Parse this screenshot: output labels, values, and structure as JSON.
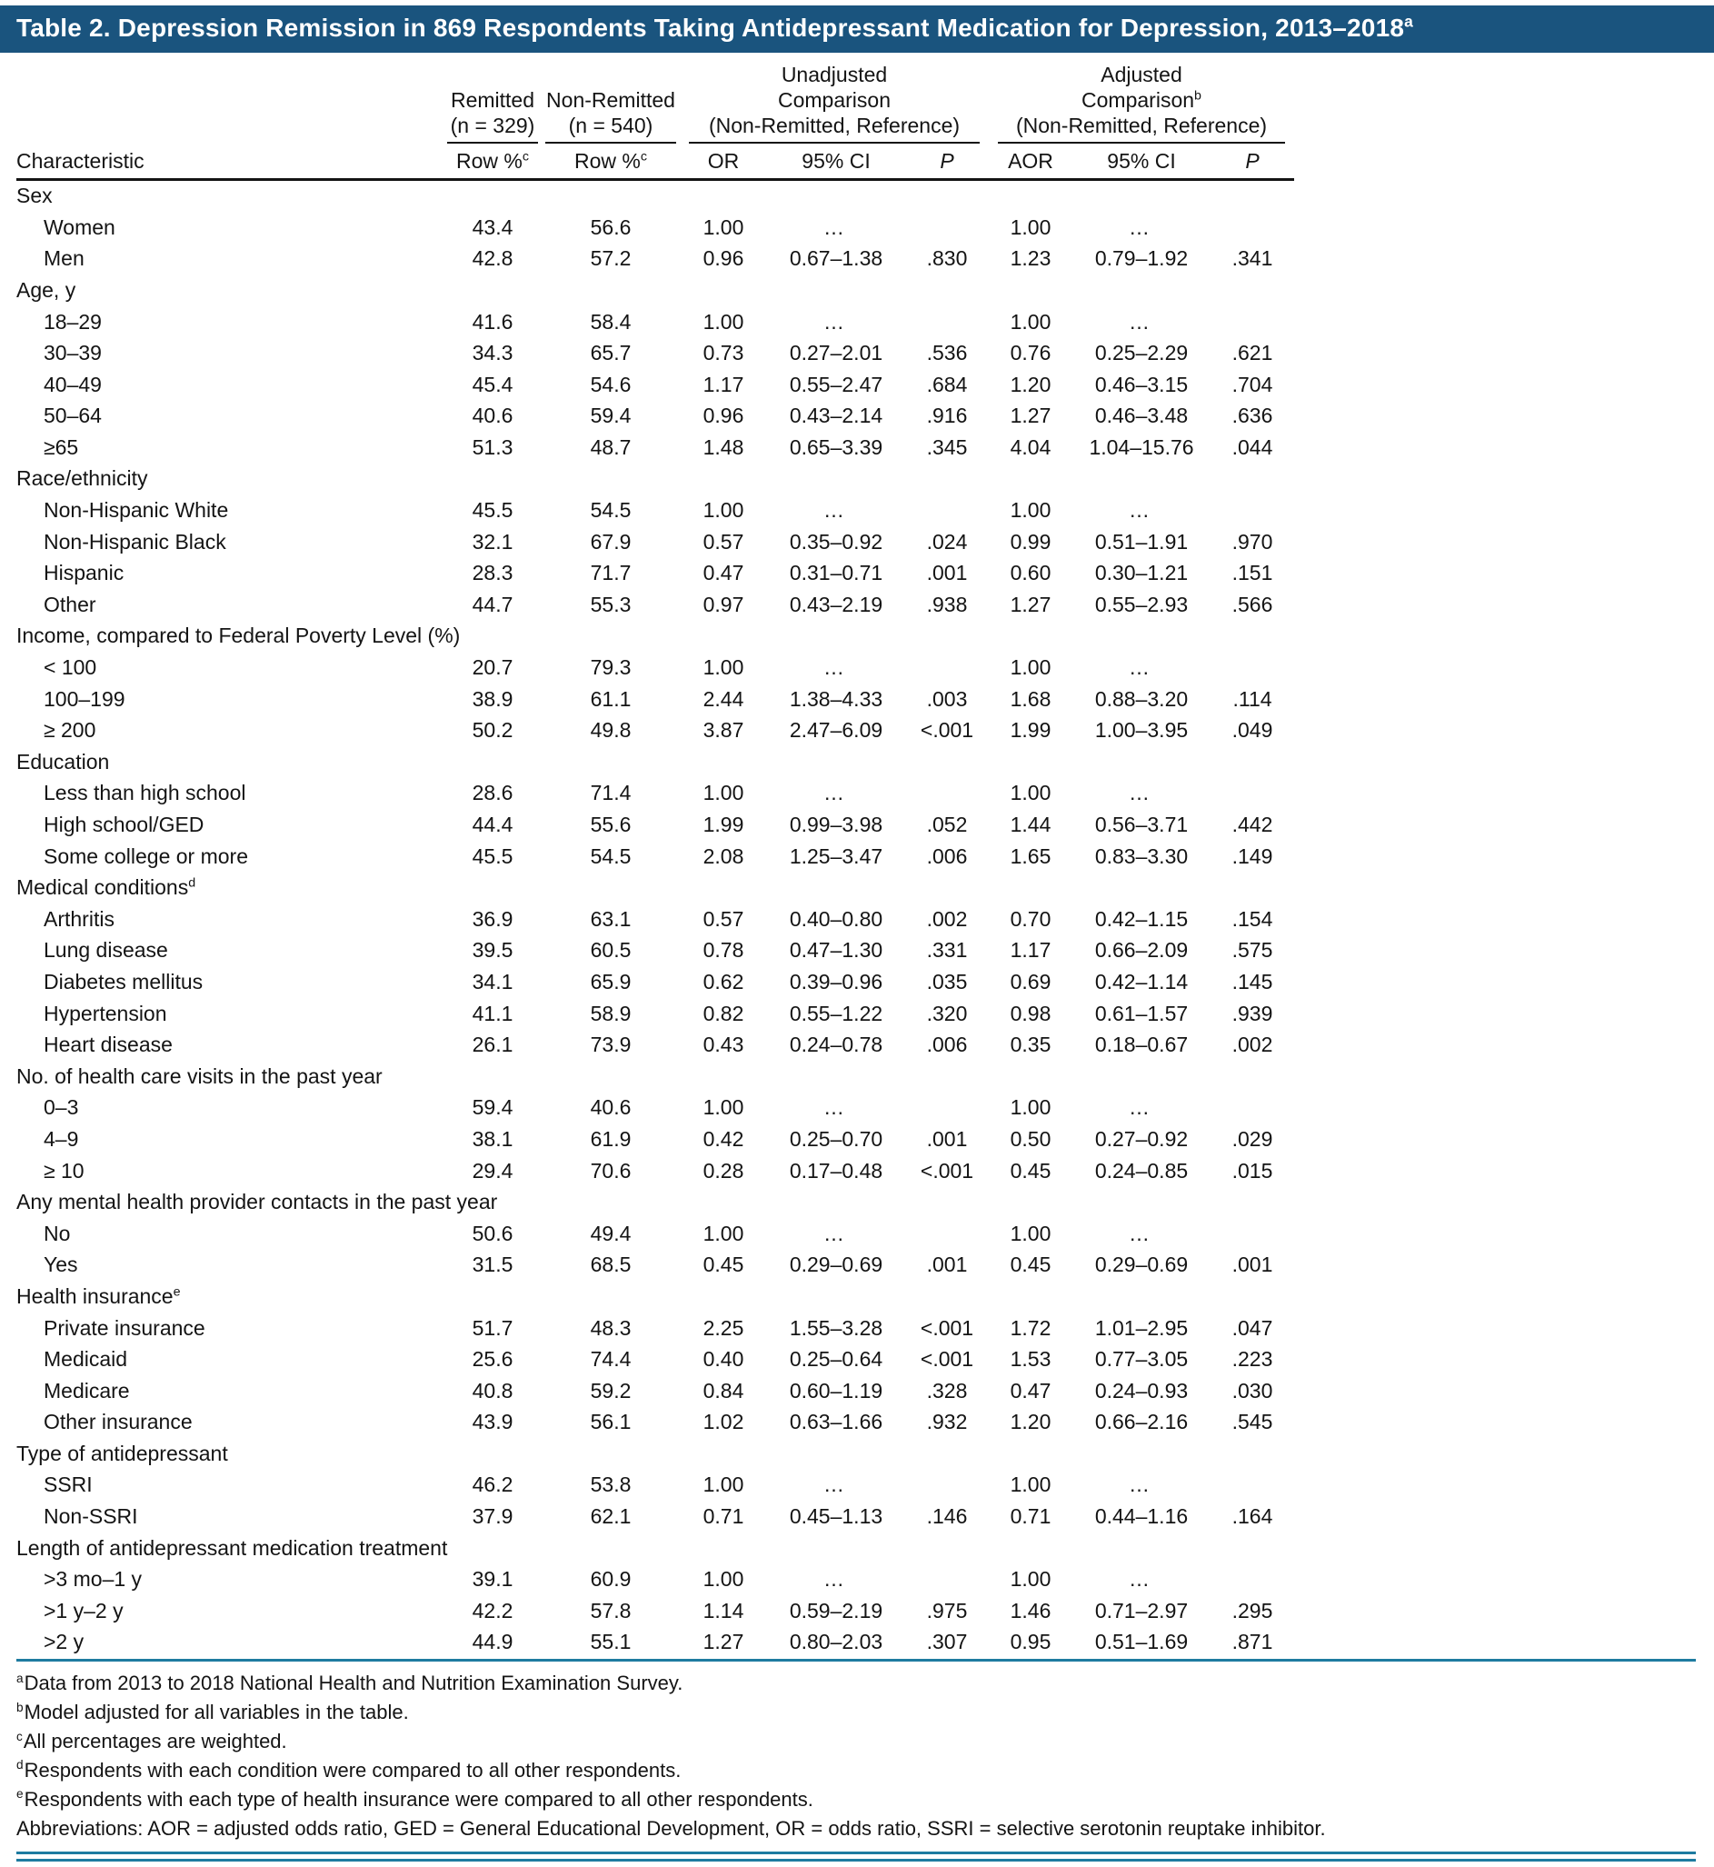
{
  "colors": {
    "header_bg": "#1A547E",
    "rule_teal": "#1E7BA0",
    "rule_black": "#141414"
  },
  "title": {
    "text": "Table 2. Depression Remission in 869 Respondents Taking Antidepressant Medication for Depression, 2013–2018",
    "sup": "a"
  },
  "header": {
    "characteristic": "Characteristic",
    "remitted": {
      "line1": "Remitted",
      "line2": "(n = 329)",
      "sub": "Row %",
      "sub_sup": "c"
    },
    "non_remitted": {
      "line1": "Non-Remitted",
      "line2": "(n = 540)",
      "sub": "Row %",
      "sub_sup": "c"
    },
    "unadjusted": {
      "line1": "Unadjusted",
      "line2": "Comparison",
      "line3": "(Non-Remitted, Reference)",
      "sub_or": "OR",
      "sub_ci": "95% CI",
      "sub_p": "P"
    },
    "adjusted": {
      "line1": "Adjusted",
      "line2": "Comparison",
      "sup": "b",
      "line3": "(Non-Remitted, Reference)",
      "sub_or": "AOR",
      "sub_ci": "95% CI",
      "sub_p": "P"
    }
  },
  "table": {
    "sections": [
      {
        "label": "Sex",
        "rows": [
          {
            "label": "Women",
            "remitted": "43.4",
            "non_remitted": "56.6",
            "or": "1.00",
            "or_ci": "…",
            "or_p": "",
            "aor": "1.00",
            "aor_ci": "…",
            "aor_p": ""
          },
          {
            "label": "Men",
            "remitted": "42.8",
            "non_remitted": "57.2",
            "or": "0.96",
            "or_ci": "0.67–1.38",
            "or_p": ".830",
            "aor": "1.23",
            "aor_ci": "0.79–1.92",
            "aor_p": ".341"
          }
        ]
      },
      {
        "label": "Age, y",
        "rows": [
          {
            "label": "18–29",
            "remitted": "41.6",
            "non_remitted": "58.4",
            "or": "1.00",
            "or_ci": "…",
            "or_p": "",
            "aor": "1.00",
            "aor_ci": "…",
            "aor_p": ""
          },
          {
            "label": "30–39",
            "remitted": "34.3",
            "non_remitted": "65.7",
            "or": "0.73",
            "or_ci": "0.27–2.01",
            "or_p": ".536",
            "aor": "0.76",
            "aor_ci": "0.25–2.29",
            "aor_p": ".621"
          },
          {
            "label": "40–49",
            "remitted": "45.4",
            "non_remitted": "54.6",
            "or": "1.17",
            "or_ci": "0.55–2.47",
            "or_p": ".684",
            "aor": "1.20",
            "aor_ci": "0.46–3.15",
            "aor_p": ".704"
          },
          {
            "label": "50–64",
            "remitted": "40.6",
            "non_remitted": "59.4",
            "or": "0.96",
            "or_ci": "0.43–2.14",
            "or_p": ".916",
            "aor": "1.27",
            "aor_ci": "0.46–3.48",
            "aor_p": ".636"
          },
          {
            "label": "≥65",
            "remitted": "51.3",
            "non_remitted": "48.7",
            "or": "1.48",
            "or_ci": "0.65–3.39",
            "or_p": ".345",
            "aor": "4.04",
            "aor_ci": "1.04–15.76",
            "aor_p": ".044"
          }
        ]
      },
      {
        "label": "Race/ethnicity",
        "rows": [
          {
            "label": "Non-Hispanic White",
            "remitted": "45.5",
            "non_remitted": "54.5",
            "or": "1.00",
            "or_ci": "…",
            "or_p": "",
            "aor": "1.00",
            "aor_ci": "…",
            "aor_p": ""
          },
          {
            "label": "Non-Hispanic Black",
            "remitted": "32.1",
            "non_remitted": "67.9",
            "or": "0.57",
            "or_ci": "0.35–0.92",
            "or_p": ".024",
            "aor": "0.99",
            "aor_ci": "0.51–1.91",
            "aor_p": ".970"
          },
          {
            "label": "Hispanic",
            "remitted": "28.3",
            "non_remitted": "71.7",
            "or": "0.47",
            "or_ci": "0.31–0.71",
            "or_p": ".001",
            "aor": "0.60",
            "aor_ci": "0.30–1.21",
            "aor_p": ".151"
          },
          {
            "label": "Other",
            "remitted": "44.7",
            "non_remitted": "55.3",
            "or": "0.97",
            "or_ci": "0.43–2.19",
            "or_p": ".938",
            "aor": "1.27",
            "aor_ci": "0.55–2.93",
            "aor_p": ".566"
          }
        ]
      },
      {
        "label": "Income, compared to Federal Poverty Level (%)",
        "rows": [
          {
            "label": "< 100",
            "remitted": "20.7",
            "non_remitted": "79.3",
            "or": "1.00",
            "or_ci": "…",
            "or_p": "",
            "aor": "1.00",
            "aor_ci": "…",
            "aor_p": ""
          },
          {
            "label": "100–199",
            "remitted": "38.9",
            "non_remitted": "61.1",
            "or": "2.44",
            "or_ci": "1.38–4.33",
            "or_p": ".003",
            "aor": "1.68",
            "aor_ci": "0.88–3.20",
            "aor_p": ".114"
          },
          {
            "label": "≥ 200",
            "remitted": "50.2",
            "non_remitted": "49.8",
            "or": "3.87",
            "or_ci": "2.47–6.09",
            "or_p": "<.001",
            "aor": "1.99",
            "aor_ci": "1.00–3.95",
            "aor_p": ".049"
          }
        ]
      },
      {
        "label": "Education",
        "rows": [
          {
            "label": "Less than high school",
            "remitted": "28.6",
            "non_remitted": "71.4",
            "or": "1.00",
            "or_ci": "…",
            "or_p": "",
            "aor": "1.00",
            "aor_ci": "…",
            "aor_p": ""
          },
          {
            "label": "High school/GED",
            "remitted": "44.4",
            "non_remitted": "55.6",
            "or": "1.99",
            "or_ci": "0.99–3.98",
            "or_p": ".052",
            "aor": "1.44",
            "aor_ci": "0.56–3.71",
            "aor_p": ".442"
          },
          {
            "label": "Some college or more",
            "remitted": "45.5",
            "non_remitted": "54.5",
            "or": "2.08",
            "or_ci": "1.25–3.47",
            "or_p": ".006",
            "aor": "1.65",
            "aor_ci": "0.83–3.30",
            "aor_p": ".149"
          }
        ]
      },
      {
        "label": "Medical conditions",
        "sup": "d",
        "rows": [
          {
            "label": "Arthritis",
            "remitted": "36.9",
            "non_remitted": "63.1",
            "or": "0.57",
            "or_ci": "0.40–0.80",
            "or_p": ".002",
            "aor": "0.70",
            "aor_ci": "0.42–1.15",
            "aor_p": ".154"
          },
          {
            "label": "Lung disease",
            "remitted": "39.5",
            "non_remitted": "60.5",
            "or": "0.78",
            "or_ci": "0.47–1.30",
            "or_p": ".331",
            "aor": "1.17",
            "aor_ci": "0.66–2.09",
            "aor_p": ".575"
          },
          {
            "label": "Diabetes mellitus",
            "remitted": "34.1",
            "non_remitted": "65.9",
            "or": "0.62",
            "or_ci": "0.39–0.96",
            "or_p": ".035",
            "aor": "0.69",
            "aor_ci": "0.42–1.14",
            "aor_p": ".145"
          },
          {
            "label": "Hypertension",
            "remitted": "41.1",
            "non_remitted": "58.9",
            "or": "0.82",
            "or_ci": "0.55–1.22",
            "or_p": ".320",
            "aor": "0.98",
            "aor_ci": "0.61–1.57",
            "aor_p": ".939"
          },
          {
            "label": "Heart disease",
            "remitted": "26.1",
            "non_remitted": "73.9",
            "or": "0.43",
            "or_ci": "0.24–0.78",
            "or_p": ".006",
            "aor": "0.35",
            "aor_ci": "0.18–0.67",
            "aor_p": ".002"
          }
        ]
      },
      {
        "label": "No. of health care visits in the past year",
        "rows": [
          {
            "label": "0–3",
            "remitted": "59.4",
            "non_remitted": "40.6",
            "or": "1.00",
            "or_ci": "…",
            "or_p": "",
            "aor": "1.00",
            "aor_ci": "…",
            "aor_p": ""
          },
          {
            "label": "4–9",
            "remitted": "38.1",
            "non_remitted": "61.9",
            "or": "0.42",
            "or_ci": "0.25–0.70",
            "or_p": ".001",
            "aor": "0.50",
            "aor_ci": "0.27–0.92",
            "aor_p": ".029"
          },
          {
            "label": "≥ 10",
            "remitted": "29.4",
            "non_remitted": "70.6",
            "or": "0.28",
            "or_ci": "0.17–0.48",
            "or_p": "<.001",
            "aor": "0.45",
            "aor_ci": "0.24–0.85",
            "aor_p": ".015"
          }
        ]
      },
      {
        "label": "Any mental health provider contacts in the past year",
        "rows": [
          {
            "label": "No",
            "remitted": "50.6",
            "non_remitted": "49.4",
            "or": "1.00",
            "or_ci": "…",
            "or_p": "",
            "aor": "1.00",
            "aor_ci": "…",
            "aor_p": ""
          },
          {
            "label": "Yes",
            "remitted": "31.5",
            "non_remitted": "68.5",
            "or": "0.45",
            "or_ci": "0.29–0.69",
            "or_p": ".001",
            "aor": "0.45",
            "aor_ci": "0.29–0.69",
            "aor_p": ".001"
          }
        ]
      },
      {
        "label": "Health insurance",
        "sup": "e",
        "rows": [
          {
            "label": "Private insurance",
            "remitted": "51.7",
            "non_remitted": "48.3",
            "or": "2.25",
            "or_ci": "1.55–3.28",
            "or_p": "<.001",
            "aor": "1.72",
            "aor_ci": "1.01–2.95",
            "aor_p": ".047"
          },
          {
            "label": "Medicaid",
            "remitted": "25.6",
            "non_remitted": "74.4",
            "or": "0.40",
            "or_ci": "0.25–0.64",
            "or_p": "<.001",
            "aor": "1.53",
            "aor_ci": "0.77–3.05",
            "aor_p": ".223"
          },
          {
            "label": "Medicare",
            "remitted": "40.8",
            "non_remitted": "59.2",
            "or": "0.84",
            "or_ci": "0.60–1.19",
            "or_p": ".328",
            "aor": "0.47",
            "aor_ci": "0.24–0.93",
            "aor_p": ".030"
          },
          {
            "label": "Other insurance",
            "remitted": "43.9",
            "non_remitted": "56.1",
            "or": "1.02",
            "or_ci": "0.63–1.66",
            "or_p": ".932",
            "aor": "1.20",
            "aor_ci": "0.66–2.16",
            "aor_p": ".545"
          }
        ]
      },
      {
        "label": "Type of antidepressant",
        "rows": [
          {
            "label": "SSRI",
            "remitted": "46.2",
            "non_remitted": "53.8",
            "or": "1.00",
            "or_ci": "…",
            "or_p": "",
            "aor": "1.00",
            "aor_ci": "…",
            "aor_p": ""
          },
          {
            "label": "Non-SSRI",
            "remitted": "37.9",
            "non_remitted": "62.1",
            "or": "0.71",
            "or_ci": "0.45–1.13",
            "or_p": ".146",
            "aor": "0.71",
            "aor_ci": "0.44–1.16",
            "aor_p": ".164"
          }
        ]
      },
      {
        "label": "Length of antidepressant medication treatment",
        "rows": [
          {
            "label": ">3 mo–1 y",
            "remitted": "39.1",
            "non_remitted": "60.9",
            "or": "1.00",
            "or_ci": "…",
            "or_p": "",
            "aor": "1.00",
            "aor_ci": "…",
            "aor_p": ""
          },
          {
            "label": ">1 y–2 y",
            "remitted": "42.2",
            "non_remitted": "57.8",
            "or": "1.14",
            "or_ci": "0.59–2.19",
            "or_p": ".975",
            "aor": "1.46",
            "aor_ci": "0.71–2.97",
            "aor_p": ".295"
          },
          {
            "label": ">2 y",
            "remitted": "44.9",
            "non_remitted": "55.1",
            "or": "1.27",
            "or_ci": "0.80–2.03",
            "or_p": ".307",
            "aor": "0.95",
            "aor_ci": "0.51–1.69",
            "aor_p": ".871"
          }
        ]
      }
    ]
  },
  "footnotes": [
    {
      "sup": "a",
      "text": "Data from 2013 to 2018 National Health and Nutrition Examination Survey."
    },
    {
      "sup": "b",
      "text": "Model adjusted for all variables in the table."
    },
    {
      "sup": "c",
      "text": "All percentages are weighted."
    },
    {
      "sup": "d",
      "text": "Respondents with each condition were compared to all other respondents."
    },
    {
      "sup": "e",
      "text": "Respondents with each type of health insurance were compared to all other respondents."
    },
    {
      "sup": "",
      "text": "Abbreviations: AOR = adjusted odds ratio, GED = General Educational Development, OR = odds ratio, SSRI = selective serotonin reuptake inhibitor."
    }
  ]
}
